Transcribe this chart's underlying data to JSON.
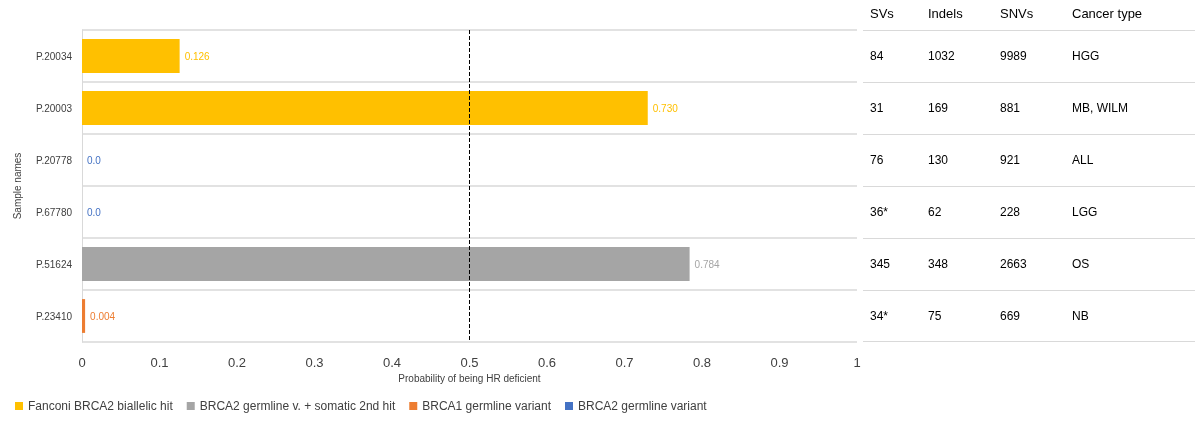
{
  "chart_data": [
    {
      "type": "bar",
      "orientation": "horizontal",
      "stacked": true,
      "ylabel": "Sample names",
      "xlabel": "Probability of being HR deficient",
      "categories": [
        "P.20034",
        "P.20003",
        "P.20778",
        "P.67780",
        "P.51624",
        "P.23410"
      ],
      "series": [
        {
          "name": "Fanconi BRCA2 biallelic hit",
          "color": "#ffc000",
          "values": [
            0.126,
            0.73,
            null,
            null,
            null,
            null
          ],
          "value_labels": [
            "0.126",
            "0.730",
            null,
            null,
            null,
            null
          ]
        },
        {
          "name": "BRCA2 germline v. + somatic 2nd hit",
          "color": "#a5a5a5",
          "values": [
            null,
            null,
            null,
            null,
            0.784,
            null
          ],
          "value_labels": [
            null,
            null,
            null,
            null,
            "0.784",
            null
          ]
        },
        {
          "name": "BRCA1 germline variant",
          "color": "#ed7d31",
          "values": [
            null,
            null,
            null,
            null,
            null,
            0.004
          ],
          "value_labels": [
            null,
            null,
            null,
            null,
            null,
            "0.004"
          ]
        },
        {
          "name": "BRCA2 germline variant",
          "color": "#4472c4",
          "values": [
            null,
            null,
            0,
            0,
            null,
            null
          ],
          "value_labels": [
            null,
            null,
            "0.0",
            "0.0",
            null,
            null
          ]
        }
      ],
      "xlim": [
        0,
        1
      ],
      "xticks": [
        0,
        0.1,
        0.2,
        0.3,
        0.4,
        0.5,
        0.6,
        0.7,
        0.8,
        0.9,
        1
      ],
      "grid": "y",
      "legend": "bottom left",
      "ref_lines": [
        {
          "axis": "x",
          "value": 0.5,
          "color": "#000000",
          "line_style": "dashed"
        }
      ]
    },
    {
      "type": "other",
      "categories": [
        "SVs",
        "Indels",
        "SNVs",
        "Cancer type"
      ],
      "cell_labels": [
        [
          "84",
          "1032",
          "9989",
          "HGG"
        ],
        [
          "31",
          "169",
          "881",
          "MB, WILM"
        ],
        [
          "76",
          "130",
          "921",
          "ALL"
        ],
        [
          "36*",
          "62",
          "228",
          "LGG"
        ],
        [
          "345",
          "348",
          "2663",
          "OS"
        ],
        [
          "34*",
          "75",
          "669",
          "NB"
        ]
      ]
    }
  ]
}
